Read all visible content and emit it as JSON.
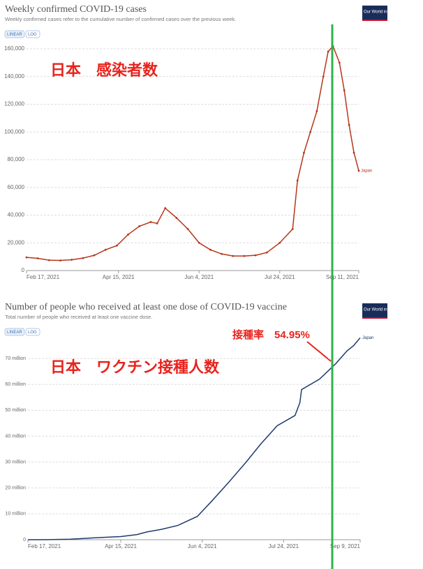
{
  "logo": "Our World in Data",
  "chart_data": [
    {
      "type": "line",
      "title": "Weekly confirmed COVID-19 cases",
      "subtitle": "Weekly confirmed cases refer to the cumulative number of confirmed cases over the previous week.",
      "scale_options": [
        "LINEAR",
        "LOG"
      ],
      "annotations": [
        "日本　感染者数"
      ],
      "x": [
        "2021-02-17",
        "2021-02-24",
        "2021-03-03",
        "2021-03-10",
        "2021-03-17",
        "2021-03-24",
        "2021-03-31",
        "2021-04-07",
        "2021-04-14",
        "2021-04-21",
        "2021-04-28",
        "2021-05-05",
        "2021-05-09",
        "2021-05-14",
        "2021-05-21",
        "2021-05-28",
        "2021-06-04",
        "2021-06-11",
        "2021-06-18",
        "2021-06-25",
        "2021-07-02",
        "2021-07-09",
        "2021-07-16",
        "2021-07-24",
        "2021-08-01",
        "2021-08-04",
        "2021-08-08",
        "2021-08-12",
        "2021-08-16",
        "2021-08-20",
        "2021-08-23",
        "2021-08-26",
        "2021-08-30",
        "2021-09-02",
        "2021-09-05",
        "2021-09-08",
        "2021-09-11"
      ],
      "series": [
        {
          "name": "Japan",
          "color": "#b5361a",
          "values": [
            9500,
            8800,
            7500,
            7300,
            7800,
            9000,
            11000,
            15000,
            18000,
            26000,
            32000,
            35000,
            34000,
            45000,
            38000,
            30000,
            20000,
            15000,
            12000,
            10500,
            10500,
            11000,
            13000,
            20000,
            30000,
            65000,
            85000,
            100000,
            115000,
            140000,
            158000,
            162000,
            150000,
            130000,
            105000,
            85000,
            72000
          ]
        }
      ],
      "xlim": [
        "2021-02-17",
        "2021-09-11"
      ],
      "xticks": [
        {
          "value": "2021-02-17",
          "label": "Feb 17, 2021"
        },
        {
          "value": "2021-04-15",
          "label": "Apr 15, 2021"
        },
        {
          "value": "2021-06-04",
          "label": "Jun 4, 2021"
        },
        {
          "value": "2021-07-24",
          "label": "Jul 24, 2021"
        },
        {
          "value": "2021-09-11",
          "label": "Sep 11, 2021"
        }
      ],
      "ylim": [
        0,
        160000
      ],
      "yticks": [
        0,
        {
          "value": 20000,
          "label": "20,000"
        },
        {
          "value": 40000,
          "label": "40,000"
        },
        {
          "value": 60000,
          "label": "60,000"
        },
        {
          "value": 80000,
          "label": "80,000"
        },
        {
          "value": 100000,
          "label": "100,000"
        },
        {
          "value": 120000,
          "label": "120,000"
        },
        {
          "value": 140000,
          "label": "140,000"
        },
        {
          "value": 160000,
          "label": "160,000"
        }
      ],
      "grid": true,
      "markers": true
    },
    {
      "type": "line",
      "title": "Number of people who received at least one dose of COVID-19 vaccine",
      "subtitle": "Total number of people who received at least one vaccine dose.",
      "scale_options": [
        "LINEAR",
        "LOG"
      ],
      "annotations": [
        "日本　ワクチン接種人数",
        "接種率　54.95%"
      ],
      "x": [
        "2021-02-17",
        "2021-03-01",
        "2021-03-15",
        "2021-04-01",
        "2021-04-15",
        "2021-04-25",
        "2021-05-01",
        "2021-05-10",
        "2021-05-20",
        "2021-06-01",
        "2021-06-10",
        "2021-06-20",
        "2021-07-01",
        "2021-07-10",
        "2021-07-20",
        "2021-07-31",
        "2021-08-03",
        "2021-08-04",
        "2021-08-15",
        "2021-08-25",
        "2021-09-01",
        "2021-09-05",
        "2021-09-09"
      ],
      "series": [
        {
          "name": "Japan",
          "color": "#1d3a6e",
          "values": [
            0,
            20000,
            200000,
            800000,
            1200000,
            2000000,
            3000000,
            4000000,
            5500000,
            9000000,
            15000000,
            22000000,
            30000000,
            37000000,
            44000000,
            48000000,
            53000000,
            58000000,
            62000000,
            68000000,
            73000000,
            75000000,
            78000000
          ]
        }
      ],
      "xlim": [
        "2021-02-17",
        "2021-09-09"
      ],
      "xticks": [
        {
          "value": "2021-02-17",
          "label": "Feb 17, 2021"
        },
        {
          "value": "2021-04-15",
          "label": "Apr 15, 2021"
        },
        {
          "value": "2021-06-04",
          "label": "Jun 4, 2021"
        },
        {
          "value": "2021-07-24",
          "label": "Jul 24, 2021"
        },
        {
          "value": "2021-09-09",
          "label": "Sep 9, 2021"
        }
      ],
      "ylim": [
        0,
        80000000
      ],
      "yticks": [
        0,
        {
          "value": 10000000,
          "label": "10 million"
        },
        {
          "value": 20000000,
          "label": "20 million"
        },
        {
          "value": 30000000,
          "label": "30 million"
        },
        {
          "value": 40000000,
          "label": "40 million"
        },
        {
          "value": 50000000,
          "label": "50 million"
        },
        {
          "value": 60000000,
          "label": "60 million"
        },
        {
          "value": 70000000,
          "label": "70 million"
        }
      ],
      "grid": true,
      "markers": false
    }
  ]
}
